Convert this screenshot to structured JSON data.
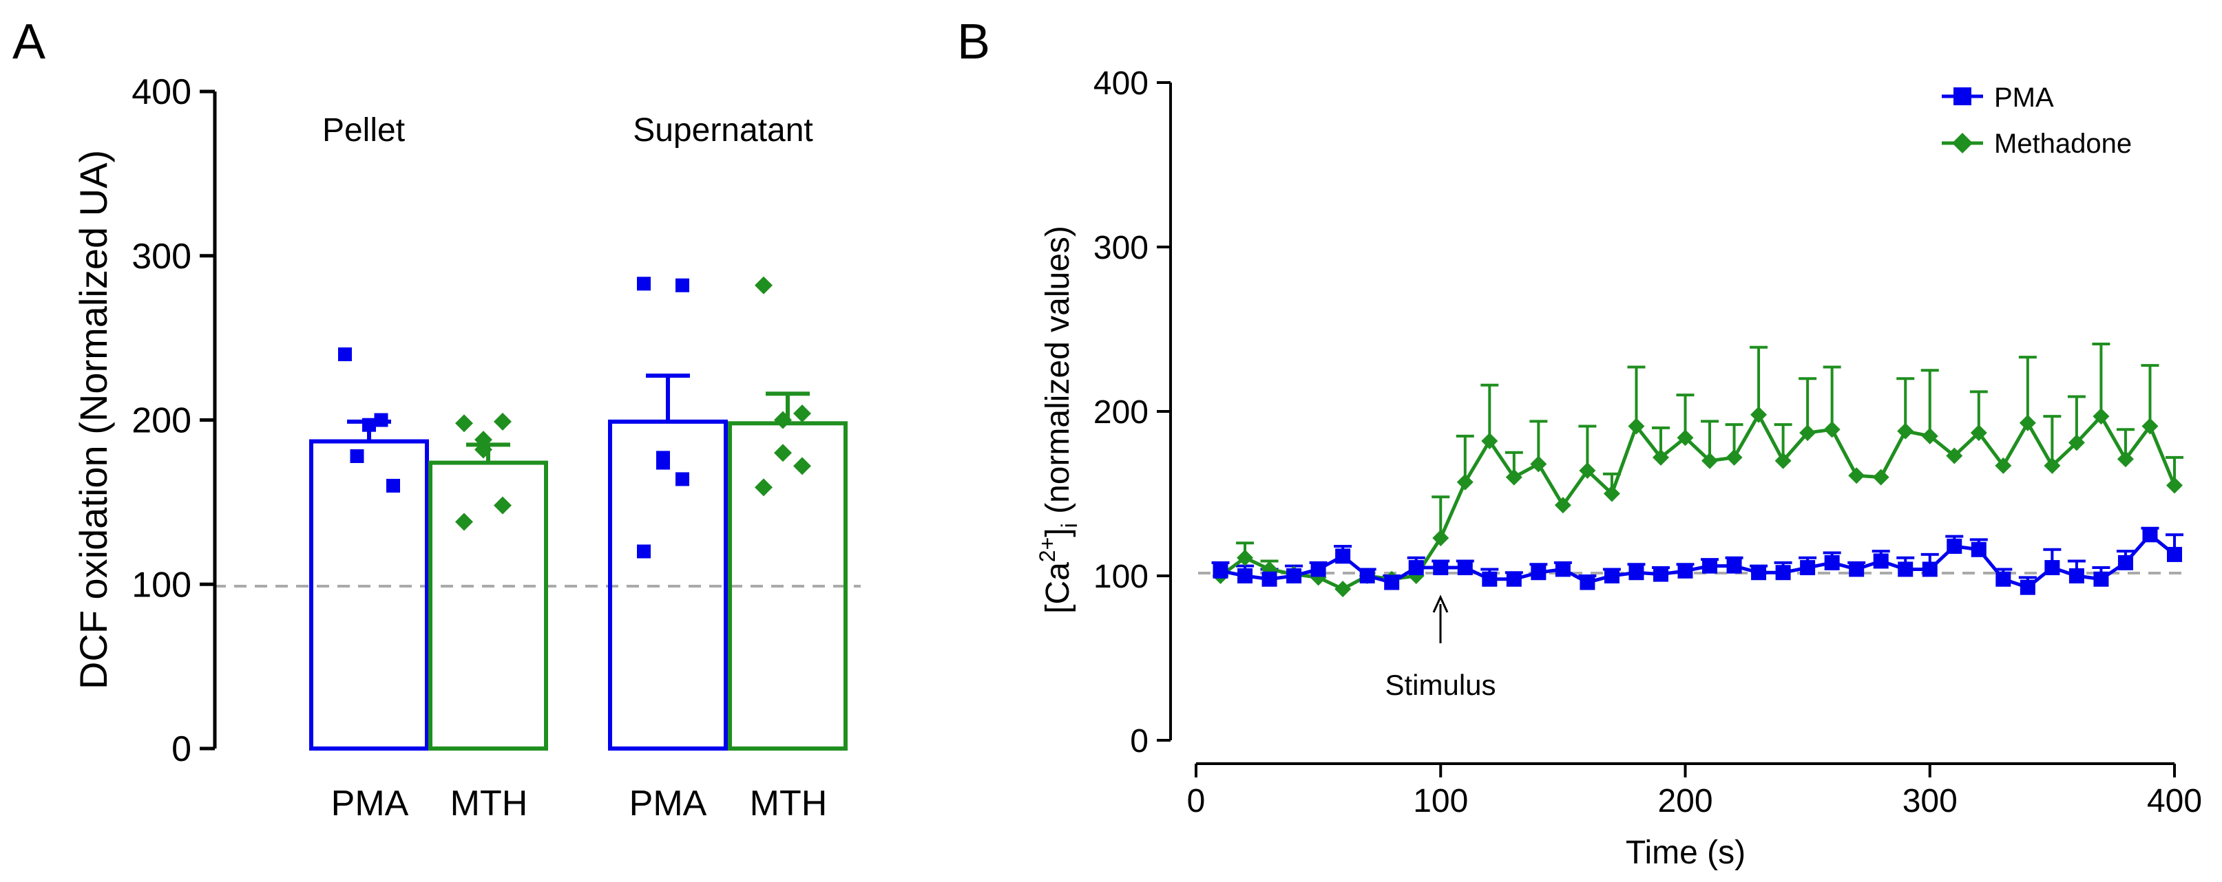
{
  "colors": {
    "pma": "#0000ee",
    "methadone": "#1f8f1f",
    "baseline": "#aaaaaa",
    "axis": "#000000"
  },
  "chart_data": [
    {
      "type": "bar",
      "panel_label": "A",
      "ylabel": "DCF oxidation (Normalized UA)",
      "ylim": [
        0,
        400
      ],
      "yticks": [
        "0",
        "100",
        "200",
        "300",
        "400"
      ],
      "baseline": 100,
      "groups": [
        {
          "label": "Pellet",
          "bars": [
            {
              "category": "PMA",
              "series": "PMA",
              "mean": 187,
              "sem": 12,
              "points": [
                240,
                200,
                197,
                178,
                160
              ]
            },
            {
              "category": "MTH",
              "series": "Methadone",
              "mean": 174,
              "sem": 11,
              "points": [
                198,
                199,
                188,
                182,
                148,
                138
              ]
            }
          ]
        },
        {
          "label": "Supernatant",
          "bars": [
            {
              "category": "PMA",
              "series": "PMA",
              "mean": 199,
              "sem": 28,
              "points": [
                283,
                282,
                177,
                174,
                164,
                120
              ]
            },
            {
              "category": "MTH",
              "series": "Methadone",
              "mean": 198,
              "sem": 18,
              "points": [
                282,
                204,
                200,
                180,
                172,
                159
              ]
            }
          ]
        }
      ]
    },
    {
      "type": "line",
      "panel_label": "B",
      "ylabel_parts": [
        "[Ca",
        "2+",
        "]",
        "i",
        " (normalized values)"
      ],
      "xlabel": "Time (s)",
      "xlim": [
        0,
        400
      ],
      "ylim": [
        0,
        400
      ],
      "xticks": [
        "0",
        "100",
        "200",
        "300",
        "400"
      ],
      "yticks": [
        "0",
        "100",
        "200",
        "300",
        "400"
      ],
      "baseline": 100,
      "annotation": {
        "text": "Stimulus",
        "x": 100
      },
      "legend_position": "top-right",
      "x": [
        10,
        20,
        30,
        40,
        50,
        60,
        70,
        80,
        90,
        100,
        110,
        120,
        130,
        140,
        150,
        160,
        170,
        180,
        190,
        200,
        210,
        220,
        230,
        240,
        250,
        260,
        270,
        280,
        290,
        300,
        310,
        320,
        330,
        340,
        350,
        360,
        370,
        380,
        390,
        400
      ],
      "series": [
        {
          "name": "PMA",
          "marker": "square",
          "values": [
            103,
            100,
            98,
            100,
            104,
            112,
            100,
            96,
            105,
            105,
            105,
            98,
            98,
            102,
            104,
            96,
            100,
            102,
            101,
            103,
            106,
            106,
            102,
            102,
            105,
            108,
            104,
            109,
            104,
            104,
            118,
            116,
            98,
            93,
            105,
            100,
            98,
            108,
            125,
            113
          ],
          "errors": [
            5,
            6,
            6,
            6,
            4,
            6,
            4,
            4,
            6,
            4,
            4,
            6,
            4,
            5,
            4,
            4,
            4,
            5,
            4,
            4,
            4,
            5,
            4,
            6,
            6,
            6,
            4,
            6,
            7,
            9,
            6,
            6,
            6,
            6,
            11,
            9,
            7,
            7,
            4,
            12
          ]
        },
        {
          "name": "Methadone",
          "marker": "diamond",
          "values": [
            100,
            111,
            104,
            101,
            99,
            92,
            100,
            98,
            100,
            123,
            157,
            182,
            160,
            168,
            143,
            164,
            150,
            191,
            172,
            184,
            170,
            172,
            198,
            170,
            187,
            189,
            161,
            160,
            188,
            185,
            173,
            187,
            167,
            193,
            167,
            181,
            197,
            171,
            191,
            155
          ],
          "errors": [
            0,
            9,
            5,
            0,
            0,
            0,
            0,
            0,
            0,
            25,
            28,
            34,
            15,
            26,
            0,
            27,
            12,
            36,
            18,
            26,
            24,
            20,
            41,
            22,
            33,
            38,
            0,
            0,
            32,
            40,
            0,
            25,
            0,
            40,
            30,
            28,
            44,
            18,
            37,
            17
          ]
        }
      ]
    }
  ]
}
